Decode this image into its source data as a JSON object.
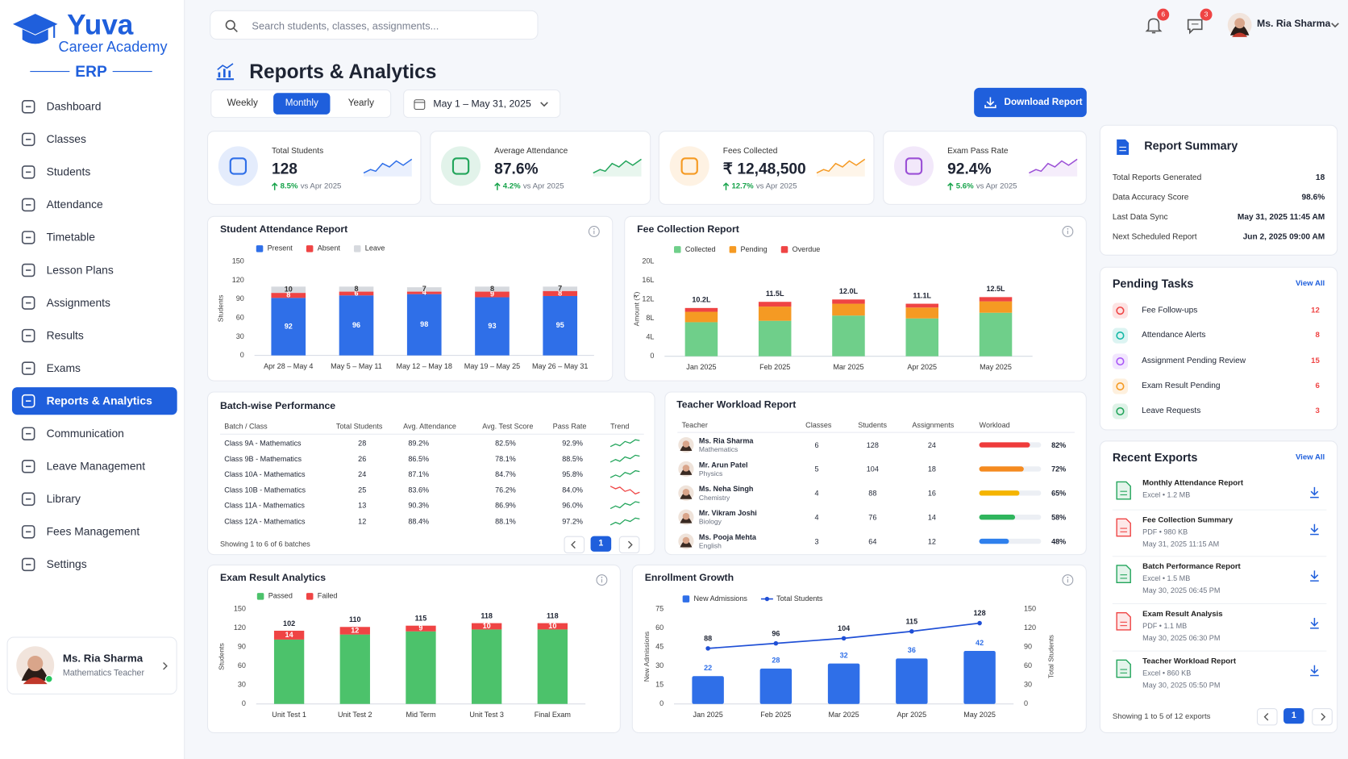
{
  "sidebar": {
    "brand": "Yuva",
    "brand_sub": "Career Academy",
    "brand_tag": "ERP",
    "nav": [
      "Dashboard",
      "Classes",
      "Students",
      "Attendance",
      "Timetable",
      "Lesson Plans",
      "Assignments",
      "Results",
      "Exams",
      "Reports & Analytics",
      "Communication",
      "Leave Management",
      "Library",
      "Fees Management",
      "Settings"
    ],
    "active_index": 9,
    "user": {
      "name": "Ms. Ria Sharma",
      "role": "Mathematics Teacher"
    }
  },
  "header": {
    "search_placeholder": "Search students, classes, assignments...",
    "notifications": 6,
    "messages": 3,
    "user_name": "Ms. Ria Sharma"
  },
  "page": {
    "title": "Reports & Analytics",
    "periods": [
      "Weekly",
      "Monthly",
      "Yearly"
    ],
    "active_period": 1,
    "date_range": "May 1 – May 31, 2025",
    "download": "Download Report"
  },
  "kpis": [
    {
      "label": "Total Students",
      "value": 128,
      "change": "8.5%",
      "compare": "vs Apr 2025",
      "color": "#2f6fe8"
    },
    {
      "label": "Average Attendance",
      "value": "87.6%",
      "change": "4.2%",
      "compare": "vs Apr 2025",
      "color": "#22a55b"
    },
    {
      "label": "Fees Collected",
      "value": "₹ 12,48,500",
      "change": "12.7%",
      "compare": "vs Apr 2025",
      "color": "#f59a23"
    },
    {
      "label": "Exam Pass Rate",
      "value": "92.4%",
      "change": "5.6%",
      "compare": "vs Apr 2025",
      "color": "#9b4fd6"
    }
  ],
  "attendance_chart": {
    "type": "stacked_bar",
    "title": "Student Attendance Report",
    "y_label": "Students",
    "segment_labels": true,
    "categories": [
      "Apr 28 – May 4",
      "May 5 – May 11",
      "May 12 – May 18",
      "May 19 – May 25",
      "May 26 – May 31"
    ],
    "series": [
      {
        "name": "Present",
        "color": "#2f6fe8",
        "values": [
          92,
          96,
          98,
          93,
          95
        ]
      },
      {
        "name": "Absent",
        "color": "#ef4444",
        "values": [
          8,
          6,
          4,
          9,
          8
        ]
      },
      {
        "name": "Leave",
        "color": "#d6d9de",
        "label_color": "#333333",
        "values": [
          10,
          8,
          7,
          8,
          7
        ]
      }
    ],
    "ylim": [
      0,
      150
    ],
    "yticks": [
      0,
      30,
      60,
      90,
      120,
      150
    ]
  },
  "fee_chart": {
    "type": "stacked_bar",
    "title": "Fee Collection Report",
    "y_label": "Amount (₹)",
    "categories": [
      "Jan 2025",
      "Feb 2025",
      "Mar 2025",
      "Apr 2025",
      "May 2025"
    ],
    "series": [
      {
        "name": "Collected",
        "color": "#6fcf8a",
        "values": [
          7.2,
          7.5,
          8.6,
          8.0,
          9.2
        ]
      },
      {
        "name": "Pending",
        "color": "#f59a23",
        "values": [
          2.2,
          3.0,
          2.5,
          2.3,
          2.4
        ]
      },
      {
        "name": "Overdue",
        "color": "#ef4444",
        "values": [
          0.8,
          1.0,
          0.9,
          0.8,
          0.9
        ]
      }
    ],
    "totals": [
      10.2,
      11.5,
      12.0,
      11.1,
      12.5
    ],
    "total_labels": [
      "10.2L",
      "11.5L",
      "12.0L",
      "11.1L",
      "12.5L"
    ],
    "ylim": [
      0,
      20
    ],
    "yticks": [
      0,
      {
        "value": 4,
        "label": "4L"
      },
      {
        "value": 8,
        "label": "8L"
      },
      {
        "value": 12,
        "label": "12L"
      },
      {
        "value": 16,
        "label": "16L"
      },
      {
        "value": 20,
        "label": "20L"
      }
    ]
  },
  "batch_table": {
    "title": "Batch-wise Performance",
    "headers": [
      "Batch / Class",
      "Total Students",
      "Avg. Attendance",
      "Avg. Test Score",
      "Pass Rate",
      "Trend"
    ],
    "rows": [
      {
        "batch": "Class 9A - Mathematics",
        "students": 28,
        "attendance": "89.2%",
        "score": "82.5%",
        "pass_rate": "92.9%",
        "trend_color": "#22a55b"
      },
      {
        "batch": "Class 9B - Mathematics",
        "students": 26,
        "attendance": "86.5%",
        "score": "78.1%",
        "pass_rate": "88.5%",
        "trend_color": "#22a55b"
      },
      {
        "batch": "Class 10A - Mathematics",
        "students": 24,
        "attendance": "87.1%",
        "score": "84.7%",
        "pass_rate": "95.8%",
        "trend_color": "#22a55b"
      },
      {
        "batch": "Class 10B - Mathematics",
        "students": 25,
        "attendance": "83.6%",
        "score": "76.2%",
        "pass_rate": "84.0%",
        "trend_color": "#ef4444"
      },
      {
        "batch": "Class 11A - Mathematics",
        "students": 13,
        "attendance": "90.3%",
        "score": "86.9%",
        "pass_rate": "96.0%",
        "trend_color": "#22a55b"
      },
      {
        "batch": "Class 12A - Mathematics",
        "students": 12,
        "attendance": "88.4%",
        "score": "88.1%",
        "pass_rate": "97.2%",
        "trend_color": "#22a55b"
      }
    ],
    "footer": "Showing 1 to 6 of 6 batches",
    "page": 1
  },
  "workload_table": {
    "title": "Teacher Workload Report",
    "headers": [
      "Teacher",
      "Classes",
      "Students",
      "Assignments",
      "Workload"
    ],
    "xlim": [
      0,
      100
    ],
    "rows": [
      {
        "name": "Ms. Ria Sharma",
        "subject": "Mathematics",
        "classes": 6,
        "students": 128,
        "assignments": 24,
        "workload": 82,
        "workload_label": "82%",
        "color": "#ef3b3b"
      },
      {
        "name": "Mr. Arun Patel",
        "subject": "Physics",
        "classes": 5,
        "students": 104,
        "assignments": 18,
        "workload": 72,
        "workload_label": "72%",
        "color": "#f58a1f"
      },
      {
        "name": "Ms. Neha Singh",
        "subject": "Chemistry",
        "classes": 4,
        "students": 88,
        "assignments": 16,
        "workload": 65,
        "workload_label": "65%",
        "color": "#f5b400"
      },
      {
        "name": "Mr. Vikram Joshi",
        "subject": "Biology",
        "classes": 4,
        "students": 76,
        "assignments": 14,
        "workload": 58,
        "workload_label": "58%",
        "color": "#2fb55d"
      },
      {
        "name": "Ms. Pooja Mehta",
        "subject": "English",
        "classes": 3,
        "students": 64,
        "assignments": 12,
        "workload": 48,
        "workload_label": "48%",
        "color": "#2f80ed"
      }
    ]
  },
  "exam_chart": {
    "type": "stacked_bar",
    "title": "Exam Result Analytics",
    "y_label": "Students",
    "segment_labels": true,
    "categories": [
      "Unit Test 1",
      "Unit Test 2",
      "Mid Term",
      "Unit Test 3",
      "Final Exam"
    ],
    "series": [
      {
        "name": "Passed",
        "color": "#4cc26b",
        "label_position": "top",
        "label_color": "#1e2433",
        "values": [
          102,
          110,
          115,
          118,
          118
        ]
      },
      {
        "name": "Failed",
        "color": "#ef4444",
        "values": [
          14,
          12,
          9,
          10,
          10
        ]
      }
    ],
    "ylim": [
      0,
      150
    ],
    "yticks": [
      0,
      30,
      60,
      90,
      120,
      150
    ]
  },
  "enrollment_chart": {
    "type": "bar_line",
    "title": "Enrollment Growth",
    "y_label": "New Admissions",
    "y2_label": "Total Students",
    "categories": [
      "Jan 2025",
      "Feb 2025",
      "Mar 2025",
      "Apr 2025",
      "May 2025"
    ],
    "series": [
      {
        "name": "New Admissions",
        "kind": "bar",
        "color": "#2f6fe8",
        "values": [
          22,
          28,
          32,
          36,
          42
        ]
      },
      {
        "name": "Total Students",
        "kind": "line",
        "axis": "y2",
        "color": "#1f4fd6",
        "values": [
          88,
          96,
          104,
          115,
          128
        ]
      }
    ],
    "ylim": [
      0,
      75
    ],
    "yticks": [
      0,
      15,
      30,
      45,
      60,
      75
    ],
    "y2lim": [
      0,
      150
    ],
    "y2ticks": [
      0,
      30,
      60,
      90,
      120,
      150
    ]
  },
  "report_summary": {
    "title": "Report Summary",
    "rows": [
      {
        "label": "Total Reports Generated",
        "value": 18
      },
      {
        "label": "Data Accuracy Score",
        "value": "98.6%"
      },
      {
        "label": "Last Data Sync",
        "value": "May 31, 2025 11:45 AM"
      },
      {
        "label": "Next Scheduled Report",
        "value": "Jun 2, 2025 09:00 AM"
      }
    ]
  },
  "pending_tasks": {
    "title": "Pending Tasks",
    "view_all": "View All",
    "items": [
      {
        "label": "Fee Follow-ups",
        "count": 12,
        "color": "#ef4444"
      },
      {
        "label": "Attendance Alerts",
        "count": 8,
        "color": "#14b8a6"
      },
      {
        "label": "Assignment Pending Review",
        "count": 15,
        "color": "#a855f7"
      },
      {
        "label": "Exam Result Pending",
        "count": 6,
        "color": "#f59a23"
      },
      {
        "label": "Leave Requests",
        "count": 3,
        "color": "#22a55b"
      }
    ]
  },
  "recent_exports": {
    "title": "Recent Exports",
    "view_all": "View All",
    "items": [
      {
        "name": "Monthly Attendance Report",
        "meta": "Excel • 1.2 MB",
        "color": "#22a55b"
      },
      {
        "name": "Fee Collection Summary",
        "meta": "PDF • 980 KB",
        "date": "May 31, 2025 11:15 AM",
        "color": "#ef4444"
      },
      {
        "name": "Batch Performance Report",
        "meta": "Excel • 1.5 MB",
        "date": "May 30, 2025 06:45 PM",
        "color": "#22a55b"
      },
      {
        "name": "Exam Result Analysis",
        "meta": "PDF • 1.1 MB",
        "date": "May 30, 2025 06:30 PM",
        "color": "#ef4444"
      },
      {
        "name": "Teacher Workload Report",
        "meta": "Excel • 860 KB",
        "date": "May 30, 2025 05:50 PM",
        "color": "#22a55b"
      }
    ],
    "footer": "Showing 1 to 5 of 12 exports",
    "page": 1
  }
}
